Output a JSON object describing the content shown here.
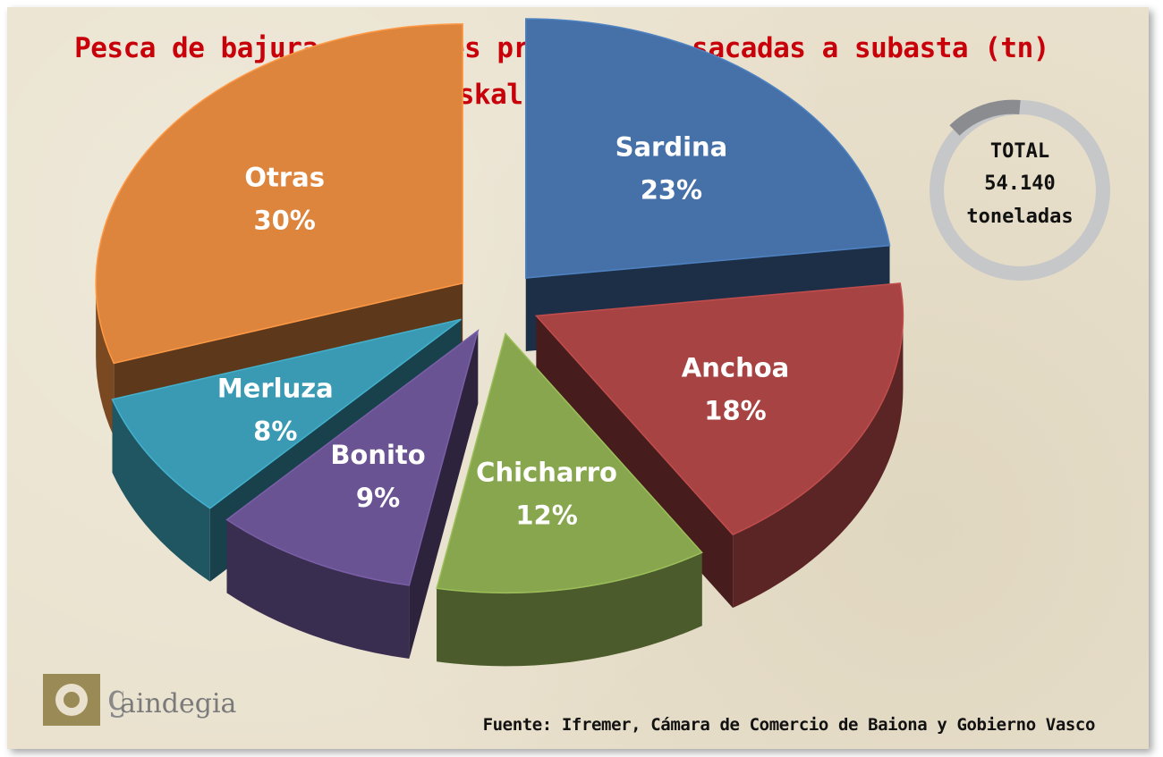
{
  "title_line1": "Pesca de bajura: especies principales sacadas a subasta (tn)",
  "title_line2": "Euskal Herria, 2013",
  "total": {
    "line1": "TOTAL",
    "line2": "54.140",
    "line3": "toneladas"
  },
  "source": "Fuente: Ifremer, Cámara de Comercio de Baiona y Gobierno Vasco",
  "logo": {
    "text": "aindegia",
    "colors": {
      "ring": "#9a8a55",
      "text": "#7a7a7a"
    }
  },
  "chart_data": {
    "type": "pie",
    "style": "3d-exploded",
    "slices": [
      {
        "label": "Sardina",
        "value": 23,
        "display": "23%",
        "color": "#4571a8"
      },
      {
        "label": "Anchoa",
        "value": 18,
        "display": "18%",
        "color": "#a84343"
      },
      {
        "label": "Chicharro",
        "value": 12,
        "display": "12%",
        "color": "#88a64e"
      },
      {
        "label": "Bonito",
        "value": 9,
        "display": "9%",
        "color": "#6a5392"
      },
      {
        "label": "Merluza",
        "value": 8,
        "display": "8%",
        "color": "#3a9ab3"
      },
      {
        "label": "Otras",
        "value": 30,
        "display": "30%",
        "color": "#dd853d"
      }
    ],
    "total_tonnes": "54.140"
  }
}
